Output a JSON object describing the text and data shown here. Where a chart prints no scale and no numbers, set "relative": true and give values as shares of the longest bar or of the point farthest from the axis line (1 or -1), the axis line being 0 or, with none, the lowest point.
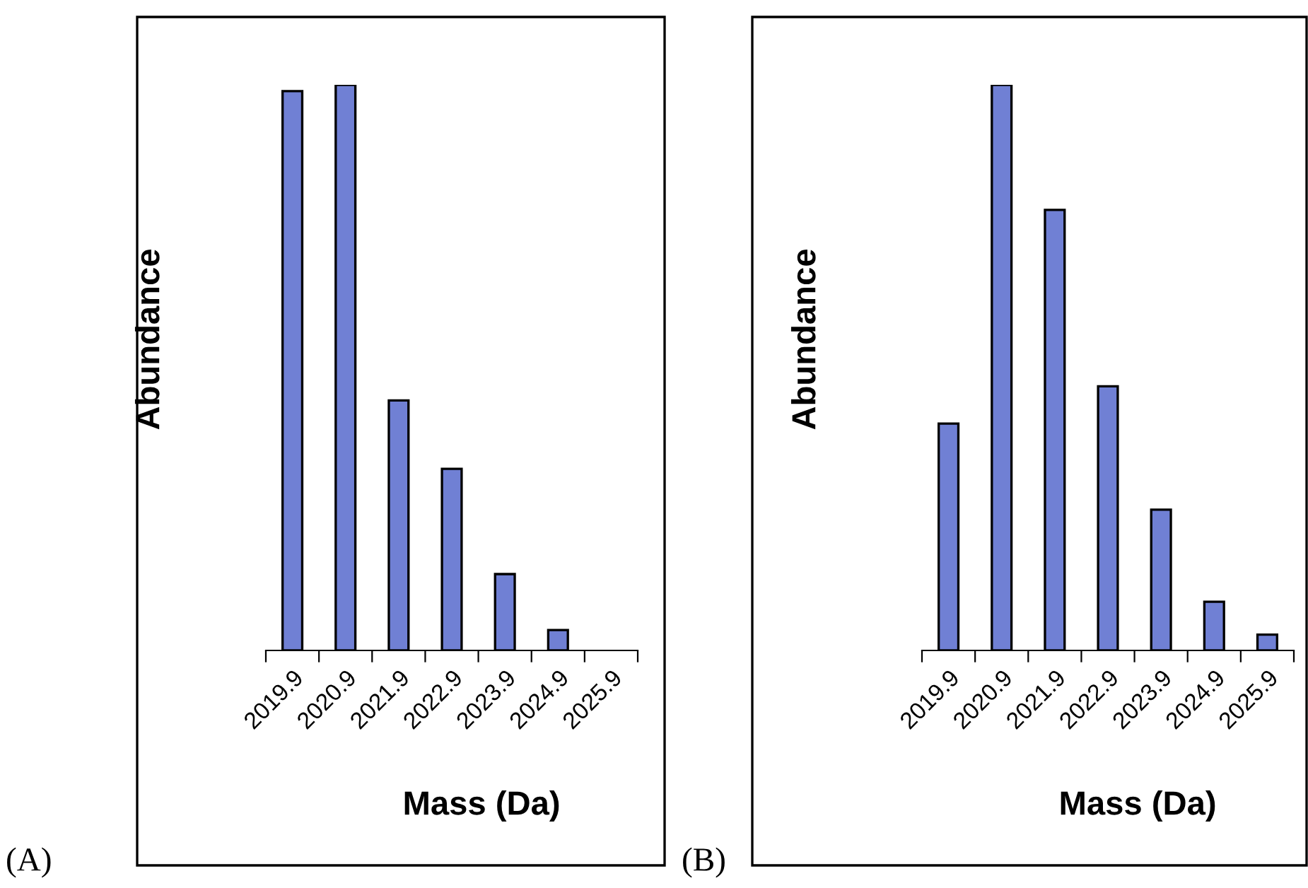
{
  "chart_data": [
    {
      "type": "bar",
      "relative": true,
      "categories": [
        "2019.9",
        "2020.9",
        "2021.9",
        "2022.9",
        "2023.9",
        "2024.9",
        "2025.9"
      ],
      "values": [
        0.989,
        1,
        0.442,
        0.321,
        0.135,
        0.036,
        null
      ],
      "color": "#7080d4",
      "xlabel": "Mass (Da)",
      "ylabel": "Abundance",
      "annotations": [
        "(A)"
      ]
    },
    {
      "type": "bar",
      "relative": true,
      "categories": [
        "2019.9",
        "2020.9",
        "2021.9",
        "2022.9",
        "2023.9",
        "2024.9",
        "2025.9"
      ],
      "values": [
        0.401,
        1,
        0.779,
        0.467,
        0.249,
        0.086,
        0.028
      ],
      "color": "#7080d4",
      "xlabel": "Mass (Da)",
      "ylabel": "Abundance",
      "annotations": [
        "(B)"
      ]
    }
  ]
}
